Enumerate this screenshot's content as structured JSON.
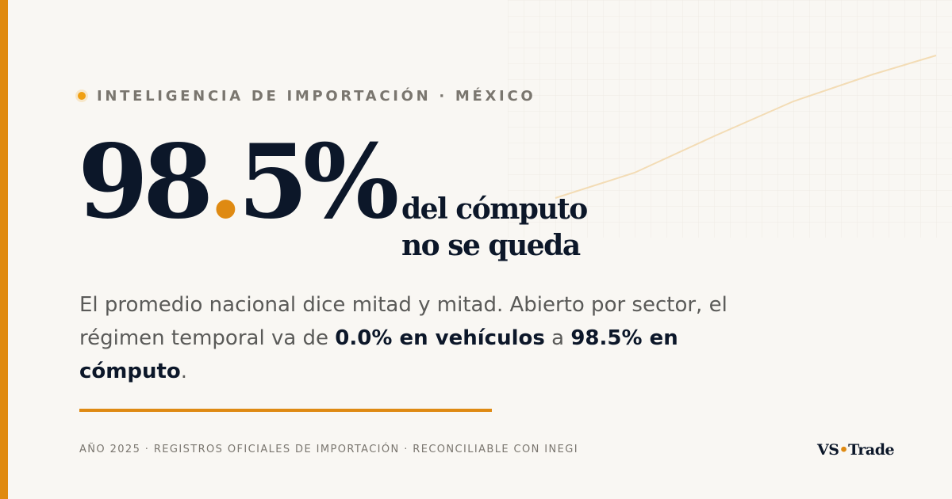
{
  "eyebrow": {
    "text": "INTELIGENCIA DE IMPORTACIÓN · MÉXICO"
  },
  "hero": {
    "int": "98",
    "dot": ".",
    "frac": "5%"
  },
  "subhead": {
    "line1": "del cómputo",
    "line2": "no se queda"
  },
  "description": {
    "part1": "El promedio nacional dice mitad y mitad. Abierto por sector, el régimen temporal va de ",
    "bold1": "0.0% en vehículos",
    "part2": " a ",
    "bold2": "98.5% en cómputo",
    "part3": "."
  },
  "footer": {
    "meta": "AÑO 2025 · REGISTROS OFICIALES DE IMPORTACIÓN · RECONCILIABLE CON INEGI",
    "brand_left": "VS",
    "brand_sep": "•",
    "brand_right": "Trade"
  },
  "colors": {
    "accent": "#e08a0e",
    "ink": "#0c1729",
    "muted": "#7a766f",
    "background": "#f9f7f3"
  }
}
